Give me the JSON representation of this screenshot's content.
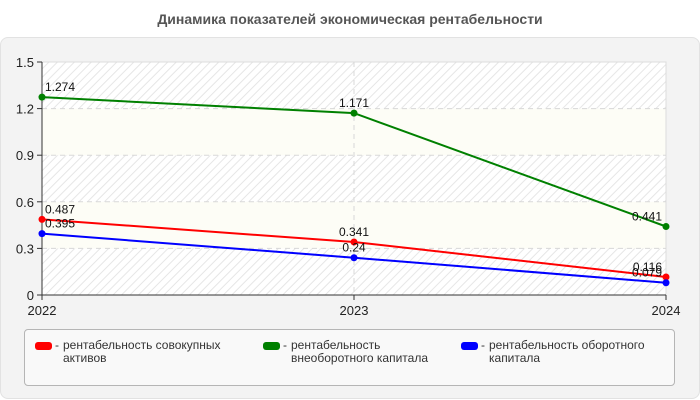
{
  "chart_data": {
    "type": "line",
    "title": "Динамика показателей экономическая рентабельности",
    "xlabel": "",
    "ylabel": "",
    "categories": [
      "2022",
      "2023",
      "2024"
    ],
    "ylim": [
      0,
      1.5
    ],
    "yticks": [
      "0",
      "0.3",
      "0.6",
      "0.9",
      "1.2",
      "1.5"
    ],
    "grid": true,
    "legend_position": "bottom",
    "series": [
      {
        "name": "рентабельность совокупных активов",
        "color": "#ff0000",
        "values": [
          0.487,
          0.341,
          0.116
        ],
        "labels": [
          "0.487",
          "0.341",
          "0.116"
        ]
      },
      {
        "name": "рентабельность внеоборотного капитала",
        "color": "#008000",
        "values": [
          1.274,
          1.171,
          0.441
        ],
        "labels": [
          "1.274",
          "1.171",
          "0.441"
        ]
      },
      {
        "name": "рентабельность оборотного капитала",
        "color": "#0000ff",
        "values": [
          0.395,
          0.24,
          0.079
        ],
        "labels": [
          "0.395",
          "0.24",
          "0.079"
        ]
      }
    ]
  },
  "legend": {
    "items": [
      {
        "line1": "рентабельность совокупных",
        "line2": "активов",
        "color": "#ff0000"
      },
      {
        "line1": "рентабельность",
        "line2": "внеоборотного капитала",
        "color": "#008000"
      },
      {
        "line1": "рентабельность оборотного",
        "line2": "капитала",
        "color": "#0000ff"
      }
    ],
    "separator": "-"
  }
}
